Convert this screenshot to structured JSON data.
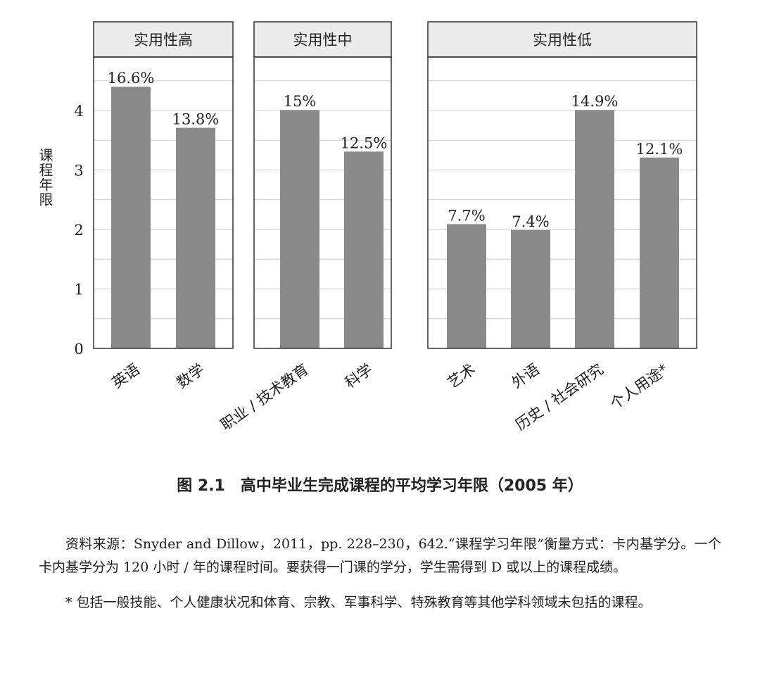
{
  "chart_data": {
    "type": "bar",
    "ylabel": "课程年限",
    "ylim": [
      0,
      4.9
    ],
    "yticks": [
      0,
      1,
      2,
      3,
      4
    ],
    "grid": true,
    "grid_step": 0.5,
    "bar_color": "#8a8a8a",
    "header_color": "#ececec",
    "panels": [
      {
        "title": "实用性高",
        "categories": [
          "英语",
          "数学"
        ],
        "values": [
          4.4,
          3.71
        ],
        "labels": [
          "16.6%",
          "13.8%"
        ]
      },
      {
        "title": "实用性中",
        "categories": [
          "职业 / 技术教育",
          "科学"
        ],
        "values": [
          4.01,
          3.31
        ],
        "labels": [
          "15%",
          "12.5%"
        ]
      },
      {
        "title": "实用性低",
        "categories": [
          "艺术",
          "外语",
          "历史 / 社会研究",
          "个人用途*"
        ],
        "values": [
          2.09,
          1.99,
          4.01,
          3.21
        ],
        "labels": [
          "7.7%",
          "7.4%",
          "14.9%",
          "12.1%"
        ]
      }
    ]
  },
  "caption": "图 2.1　高中毕业生完成课程的平均学习年限（2005 年）",
  "notes": {
    "source": "资料来源：Snyder and Dillow，2011，pp. 228–230，642.“课程学习年限”衡量方式：卡内基学分。一个卡内基学分为 120 小时 / 年的课程时间。要获得一门课的学分，学生需得到 D 或以上的课程成绩。",
    "footnote": "* 包括一般技能、个人健康状况和体育、宗教、军事科学、特殊教育等其他学科领域未包括的课程。"
  }
}
